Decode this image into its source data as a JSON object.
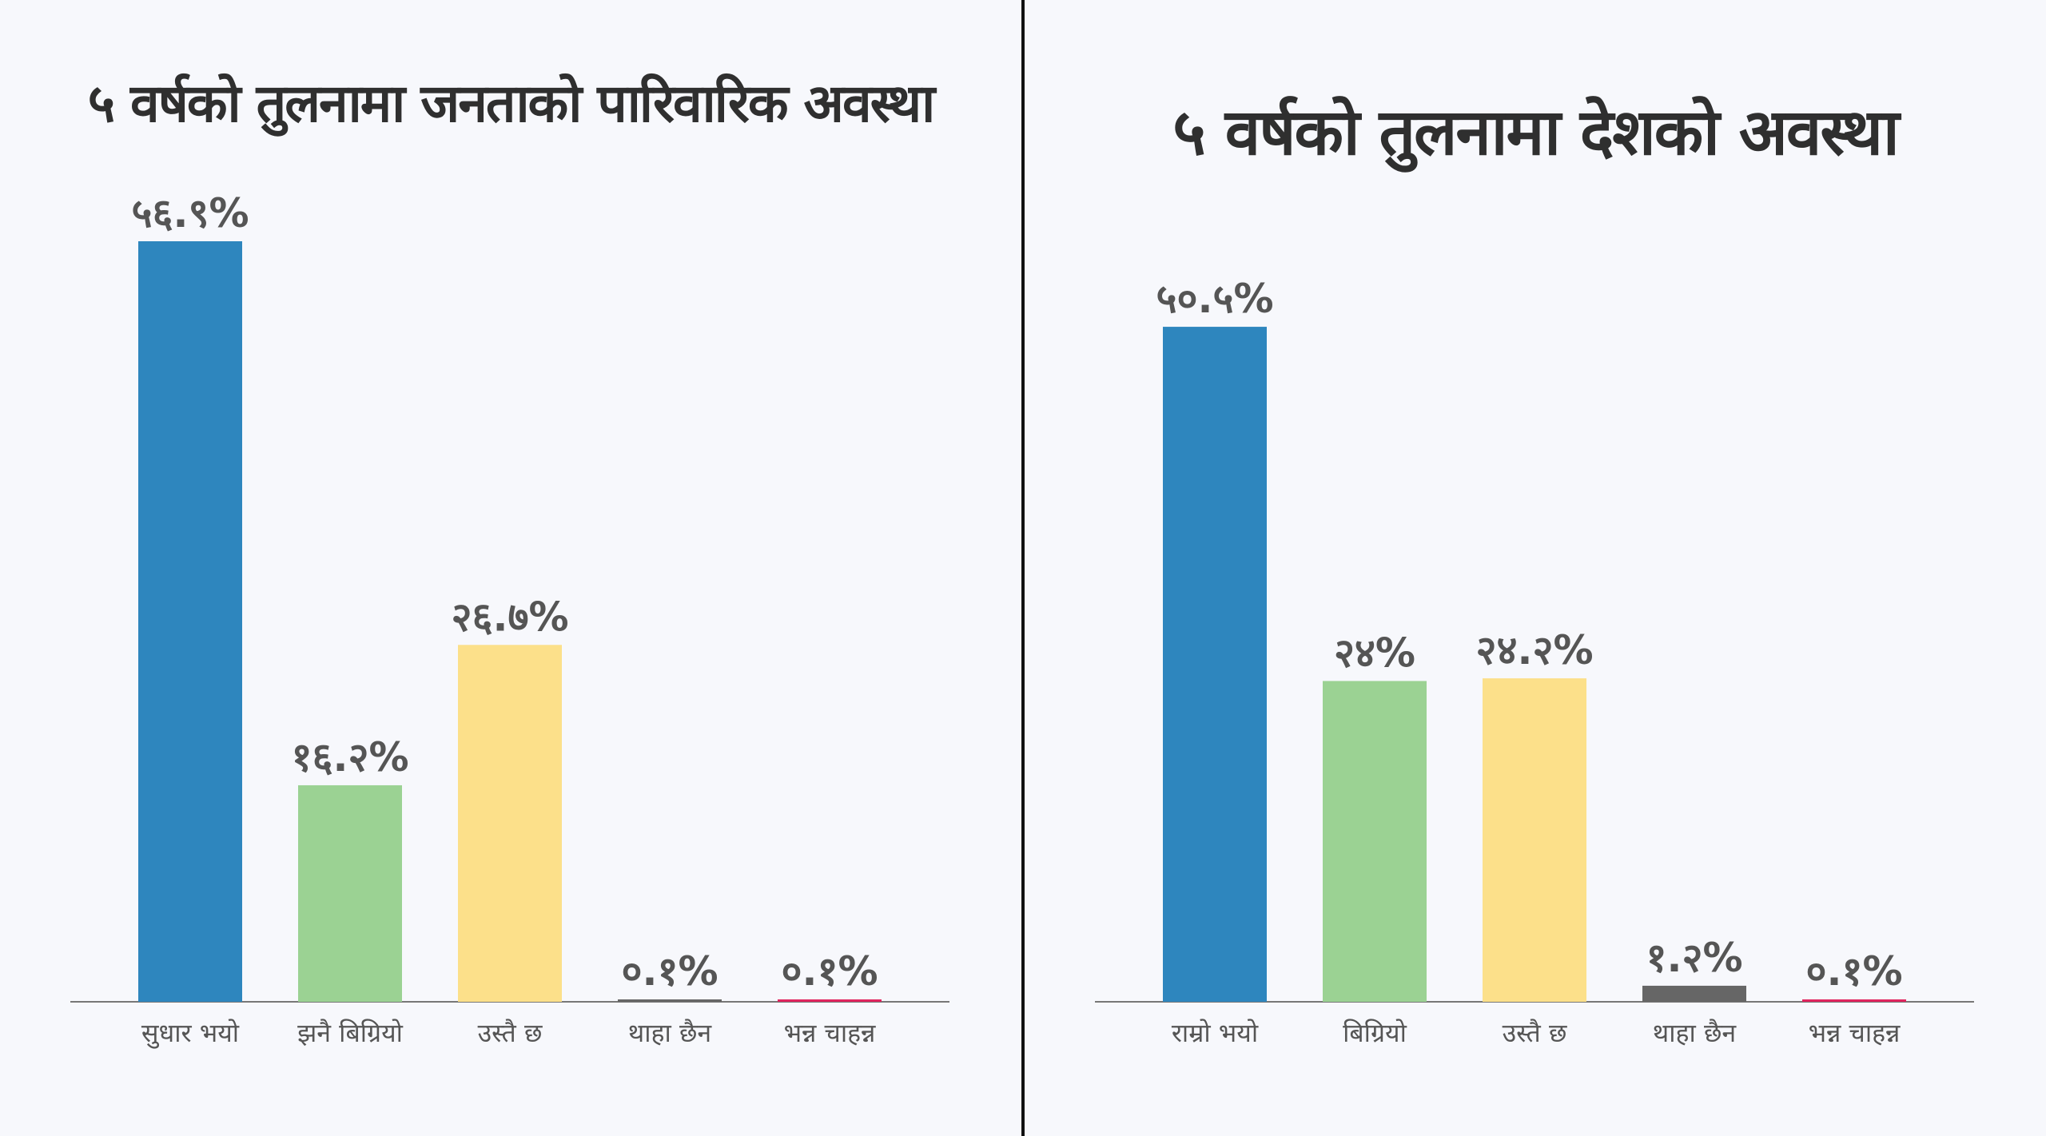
{
  "chart_data": [
    {
      "type": "bar",
      "title": "५ वर्षको तुलनामा जनताको पारिवारिक अवस्था",
      "categories": [
        "सुधार भयो",
        "झनै बिग्रियो",
        "उस्तै छ",
        "थाहा छैन",
        "भन्न चाहन्न"
      ],
      "values": [
        56.9,
        16.2,
        26.7,
        0.1,
        0.1
      ],
      "labels": [
        "५६.९%",
        "१६.२%",
        "२६.७%",
        "०.१%",
        "०.१%"
      ],
      "colors": [
        "#2e86be",
        "#9bd293",
        "#fce08a",
        "#666666",
        "#e0245e"
      ],
      "ylim": [
        0,
        56.9
      ],
      "grid": false,
      "xlabel": "",
      "ylabel": ""
    },
    {
      "type": "bar",
      "title": "५ वर्षको तुलनामा देशको अवस्था",
      "categories": [
        "राम्रो भयो",
        "बिग्रियो",
        "उस्तै छ",
        "थाहा छैन",
        "भन्न चाहन्न"
      ],
      "values": [
        50.5,
        24,
        24.2,
        1.2,
        0.1
      ],
      "labels": [
        "५०.५%",
        "२४%",
        "२४.२%",
        "१.२%",
        "०.१%"
      ],
      "colors": [
        "#2e86be",
        "#9bd293",
        "#fce08a",
        "#666666",
        "#e0245e"
      ],
      "ylim": [
        0,
        56.9
      ],
      "grid": false,
      "xlabel": "",
      "ylabel": ""
    }
  ]
}
